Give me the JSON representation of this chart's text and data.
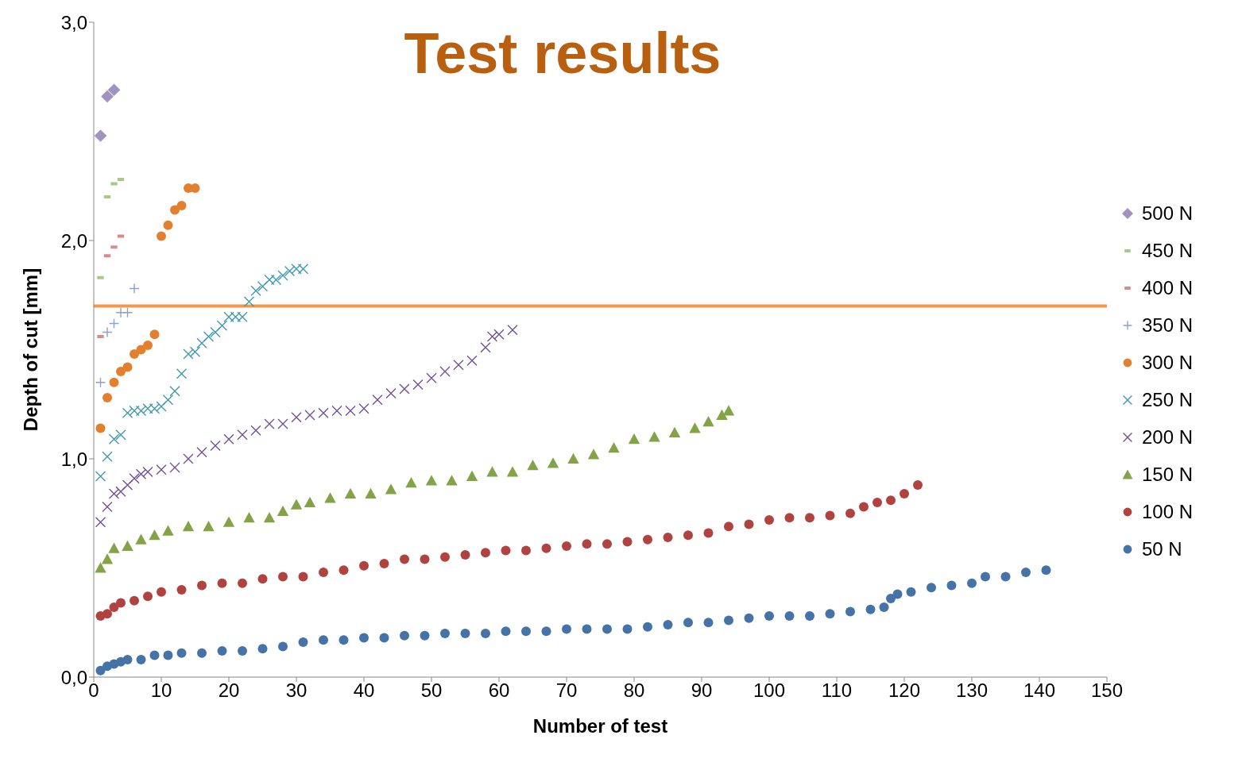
{
  "chart_data": {
    "type": "scatter",
    "title": "Test results",
    "xlabel": "Number of test",
    "ylabel": "Depth of cut [mm]",
    "xlim": [
      0,
      150
    ],
    "xticks": [
      0,
      10,
      20,
      30,
      40,
      50,
      60,
      70,
      80,
      90,
      100,
      110,
      120,
      130,
      140,
      150
    ],
    "ylim": [
      0,
      3
    ],
    "yticks": [
      {
        "value": 0,
        "label": "0,0"
      },
      {
        "value": 1,
        "label": "1,0"
      },
      {
        "value": 2,
        "label": "2,0"
      },
      {
        "value": 3,
        "label": "3,0"
      }
    ],
    "grid": false,
    "legend": "right",
    "ref_lines": [
      {
        "axis": "y",
        "value": 1.7,
        "color": "#f79646",
        "line_style": "solid"
      }
    ],
    "series": [
      {
        "name": "500 N",
        "color": "#a093c2",
        "marker": "diamond",
        "x": [
          1,
          2,
          3
        ],
        "values": [
          2.48,
          2.66,
          2.69
        ]
      },
      {
        "name": "450 N",
        "color": "#a9c88a",
        "x": [
          1,
          2,
          3,
          4
        ],
        "values": [
          1.83,
          2.2,
          2.26,
          2.28
        ]
      },
      {
        "name": "400 N",
        "color": "#d98c8c",
        "x": [
          1,
          2,
          3,
          4
        ],
        "values": [
          1.56,
          1.93,
          1.97,
          2.02
        ]
      },
      {
        "name": "350 N",
        "color": "#8ea0d0",
        "marker": "plus",
        "x": [
          1,
          2,
          3,
          4,
          5,
          6
        ],
        "values": [
          1.35,
          1.58,
          1.62,
          1.67,
          1.67,
          1.78
        ]
      },
      {
        "name": "300 N",
        "color": "#e3802f",
        "marker": "circle",
        "x": [
          1,
          2,
          3,
          4,
          5,
          6,
          7,
          8,
          9,
          10,
          11,
          12,
          13,
          14,
          15
        ],
        "values": [
          1.14,
          1.28,
          1.35,
          1.4,
          1.42,
          1.48,
          1.5,
          1.52,
          1.57,
          2.02,
          2.07,
          2.14,
          2.16,
          2.24,
          2.24
        ]
      },
      {
        "name": "250 N",
        "color": "#4198b0",
        "marker": "cross",
        "x": [
          1,
          2,
          3,
          4,
          5,
          6,
          7,
          8,
          9,
          10,
          11,
          12,
          13,
          14,
          15,
          16,
          17,
          18,
          19,
          20,
          21,
          22,
          23,
          24,
          25,
          26,
          27,
          28,
          29,
          30,
          31
        ],
        "values": [
          0.92,
          1.01,
          1.09,
          1.11,
          1.21,
          1.22,
          1.22,
          1.23,
          1.23,
          1.24,
          1.27,
          1.31,
          1.39,
          1.48,
          1.49,
          1.53,
          1.56,
          1.58,
          1.61,
          1.65,
          1.65,
          1.65,
          1.72,
          1.77,
          1.79,
          1.82,
          1.82,
          1.84,
          1.86,
          1.87,
          1.87
        ]
      },
      {
        "name": "200 N",
        "color": "#70509a",
        "marker": "cross",
        "x": [
          1,
          2,
          3,
          4,
          5,
          6,
          7,
          8,
          10,
          12,
          14,
          16,
          18,
          20,
          22,
          24,
          26,
          28,
          30,
          32,
          34,
          36,
          38,
          40,
          42,
          44,
          46,
          48,
          50,
          52,
          54,
          56,
          58,
          59,
          60,
          62
        ],
        "values": [
          0.71,
          0.78,
          0.84,
          0.85,
          0.88,
          0.91,
          0.93,
          0.94,
          0.95,
          0.96,
          1.0,
          1.03,
          1.06,
          1.09,
          1.11,
          1.13,
          1.16,
          1.16,
          1.19,
          1.2,
          1.21,
          1.22,
          1.22,
          1.23,
          1.27,
          1.3,
          1.32,
          1.34,
          1.37,
          1.4,
          1.43,
          1.45,
          1.51,
          1.56,
          1.57,
          1.59
        ]
      },
      {
        "name": "150 N",
        "color": "#82a447",
        "marker": "triangle",
        "x": [
          1,
          2,
          3,
          5,
          7,
          9,
          11,
          14,
          17,
          20,
          23,
          26,
          28,
          30,
          32,
          35,
          38,
          41,
          44,
          47,
          50,
          53,
          56,
          59,
          62,
          65,
          68,
          71,
          74,
          77,
          80,
          83,
          86,
          89,
          91,
          93,
          94
        ],
        "values": [
          0.5,
          0.54,
          0.59,
          0.6,
          0.63,
          0.65,
          0.67,
          0.69,
          0.69,
          0.71,
          0.73,
          0.73,
          0.76,
          0.79,
          0.8,
          0.82,
          0.84,
          0.84,
          0.86,
          0.89,
          0.9,
          0.9,
          0.92,
          0.94,
          0.94,
          0.97,
          0.98,
          1.0,
          1.02,
          1.05,
          1.09,
          1.1,
          1.12,
          1.14,
          1.17,
          1.2,
          1.22
        ]
      },
      {
        "name": "100 N",
        "color": "#b04340",
        "marker": "circle",
        "x": [
          1,
          2,
          3,
          4,
          6,
          8,
          10,
          13,
          16,
          19,
          22,
          25,
          28,
          31,
          34,
          37,
          40,
          43,
          46,
          49,
          52,
          55,
          58,
          61,
          64,
          67,
          70,
          73,
          76,
          79,
          82,
          85,
          88,
          91,
          94,
          97,
          100,
          103,
          106,
          109,
          112,
          114,
          116,
          118,
          120,
          122
        ],
        "values": [
          0.28,
          0.29,
          0.32,
          0.34,
          0.35,
          0.37,
          0.39,
          0.4,
          0.42,
          0.43,
          0.43,
          0.45,
          0.46,
          0.46,
          0.48,
          0.49,
          0.51,
          0.52,
          0.54,
          0.54,
          0.55,
          0.56,
          0.57,
          0.58,
          0.58,
          0.59,
          0.6,
          0.61,
          0.61,
          0.62,
          0.63,
          0.64,
          0.65,
          0.66,
          0.69,
          0.7,
          0.72,
          0.73,
          0.73,
          0.74,
          0.75,
          0.78,
          0.8,
          0.81,
          0.84,
          0.88
        ]
      },
      {
        "name": "50 N",
        "color": "#4572a7",
        "marker": "circle",
        "x": [
          1,
          2,
          3,
          4,
          5,
          7,
          9,
          11,
          13,
          16,
          19,
          22,
          25,
          28,
          31,
          34,
          37,
          40,
          43,
          46,
          49,
          52,
          55,
          58,
          61,
          64,
          67,
          70,
          73,
          76,
          79,
          82,
          85,
          88,
          91,
          94,
          97,
          100,
          103,
          106,
          109,
          112,
          115,
          117,
          118,
          119,
          121,
          124,
          127,
          130,
          132,
          135,
          138,
          141
        ],
        "values": [
          0.03,
          0.05,
          0.06,
          0.07,
          0.08,
          0.08,
          0.1,
          0.1,
          0.11,
          0.11,
          0.12,
          0.12,
          0.13,
          0.14,
          0.16,
          0.17,
          0.17,
          0.18,
          0.18,
          0.19,
          0.19,
          0.2,
          0.2,
          0.2,
          0.21,
          0.21,
          0.21,
          0.22,
          0.22,
          0.22,
          0.22,
          0.23,
          0.24,
          0.25,
          0.25,
          0.26,
          0.27,
          0.28,
          0.28,
          0.28,
          0.29,
          0.3,
          0.31,
          0.32,
          0.36,
          0.38,
          0.39,
          0.41,
          0.42,
          0.43,
          0.46,
          0.46,
          0.48,
          0.49
        ]
      }
    ]
  }
}
